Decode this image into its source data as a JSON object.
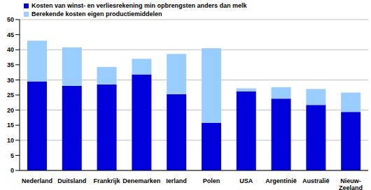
{
  "chart_data": {
    "type": "bar",
    "stacked": true,
    "grid": true,
    "legend": "top-left",
    "categories": [
      "Nederland",
      "Duitsland",
      "Frankrijk",
      "Denemarken",
      "Ierland",
      "Polen",
      "USA",
      "Argentinië",
      "Australië",
      "Nieuw-Zeeland"
    ],
    "series": [
      {
        "name": "Kosten van winst- en verliesrekening min opbrengsten anders dan melk",
        "color": "#0000dd",
        "values": [
          29.5,
          28,
          28.5,
          31.8,
          25.3,
          15.8,
          26.2,
          23.8,
          21.7,
          19.4
        ]
      },
      {
        "name": "Berekende kosten eigen productiemiddelen",
        "color": "#99ccff",
        "values": [
          13.5,
          12.8,
          5.8,
          5.2,
          13.3,
          24.7,
          1.0,
          3.8,
          5.3,
          6.4
        ]
      }
    ],
    "ylim": [
      0,
      50
    ],
    "yticks": [
      0,
      5,
      10,
      15,
      20,
      25,
      30,
      35,
      40,
      45,
      50
    ]
  }
}
